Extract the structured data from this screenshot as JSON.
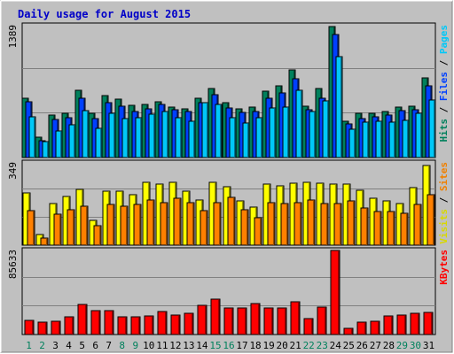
{
  "chart_data": {
    "type": "bar",
    "title": "Daily usage for August 2015",
    "title_color": "#0000c8",
    "categories": [
      "1",
      "2",
      "3",
      "4",
      "5",
      "6",
      "7",
      "8",
      "9",
      "10",
      "11",
      "12",
      "13",
      "14",
      "15",
      "16",
      "17",
      "18",
      "19",
      "20",
      "21",
      "22",
      "23",
      "24",
      "25",
      "26",
      "27",
      "28",
      "29",
      "30",
      "31"
    ],
    "weekend_days": [
      "1",
      "2",
      "8",
      "9",
      "15",
      "16",
      "22",
      "23",
      "29",
      "30"
    ],
    "weekend_color": "#00805c",
    "weekday_color": "#000000",
    "grid": true,
    "panels": [
      {
        "id": "top",
        "ymax_label": "1389",
        "ymax": 1389,
        "right_labels": [
          {
            "text": "Hits",
            "color": "#00805c"
          },
          {
            "text": " / ",
            "color": "#000000"
          },
          {
            "text": "Files",
            "color": "#0040ff"
          },
          {
            "text": " / ",
            "color": "#000000"
          },
          {
            "text": "Pages",
            "color": "#00c8f8"
          }
        ],
        "series": [
          {
            "name": "Hits",
            "color": "#00805c",
            "values": [
              620,
              210,
              440,
              460,
              700,
              460,
              650,
              610,
              550,
              560,
              580,
              530,
              510,
              620,
              720,
              570,
              510,
              530,
              690,
              750,
              920,
              540,
              720,
              1370,
              380,
              460,
              460,
              480,
              530,
              540,
              830
            ]
          },
          {
            "name": "Files",
            "color": "#0040ff",
            "values": [
              580,
              180,
              400,
              420,
              620,
              410,
              570,
              540,
              480,
              510,
              560,
              500,
              480,
              570,
              660,
              520,
              470,
              480,
              620,
              680,
              820,
              500,
              620,
              1290,
              350,
              410,
              430,
              440,
              490,
              500,
              750
            ]
          },
          {
            "name": "Pages",
            "color": "#00c8f8",
            "values": [
              430,
              170,
              280,
              340,
              490,
              310,
              460,
              410,
              420,
              450,
              480,
              420,
              380,
              570,
              560,
              420,
              360,
              420,
              520,
              530,
              700,
              480,
              590,
              1060,
              300,
              370,
              380,
              370,
              390,
              460,
              600
            ]
          }
        ]
      },
      {
        "id": "middle",
        "ymax_label": "349",
        "ymax": 349,
        "right_labels": [
          {
            "text": "Visits",
            "color": "#d8d800"
          },
          {
            "text": " / ",
            "color": "#000000"
          },
          {
            "text": "Sites",
            "color": "#f08000"
          }
        ],
        "series": [
          {
            "name": "Visits",
            "color": "#ffff00",
            "values": [
              220,
              45,
              175,
              205,
              235,
              105,
              225,
              225,
              210,
              265,
              255,
              265,
              225,
              190,
              265,
              245,
              185,
              160,
              255,
              250,
              260,
              265,
              260,
              255,
              255,
              230,
              195,
              185,
              175,
              240,
              335
            ]
          },
          {
            "name": "Sites",
            "color": "#ff8000",
            "values": [
              145,
              30,
              130,
              150,
              165,
              80,
              170,
              165,
              170,
              190,
              180,
              195,
              180,
              145,
              180,
              200,
              150,
              115,
              180,
              175,
              180,
              190,
              175,
              175,
              185,
              155,
              140,
              140,
              135,
              170,
              210
            ]
          }
        ]
      },
      {
        "id": "bottom",
        "ymax_label": "85633",
        "ymax": 85633,
        "right_labels": [
          {
            "text": "KBytes",
            "color": "#ff0000"
          }
        ],
        "series": [
          {
            "name": "KBytes",
            "color": "#ff0000",
            "values": [
              14000,
              12800,
              13500,
              17800,
              30000,
              24000,
              23800,
              17500,
              18000,
              19000,
              23500,
              20000,
              21500,
              29500,
              35300,
              27000,
              26500,
              31000,
              27000,
              26500,
              33000,
              16000,
              28000,
              84500,
              6300,
              12600,
              13700,
              18800,
              19500,
              21600,
              22600
            ]
          }
        ]
      }
    ]
  }
}
